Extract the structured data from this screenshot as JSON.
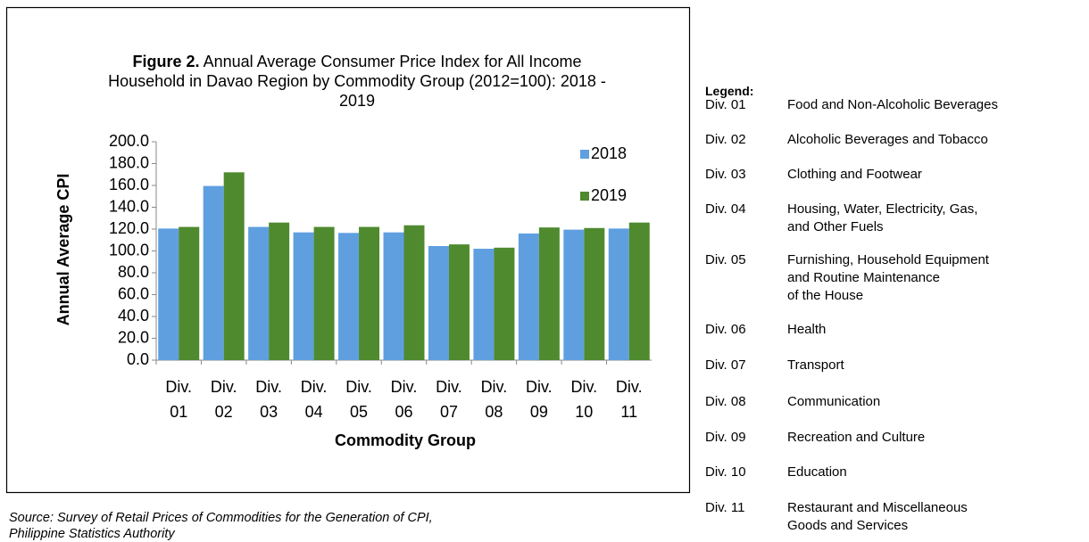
{
  "chart_data": {
    "type": "bar",
    "title_label": "Figure 2.",
    "title": "Annual Average Consumer Price Index for All Income Household in Davao Region by Commodity Group (2012=100): 2018 - 2019",
    "x_label": "Commodity Group",
    "y_label": "Annual Average CPI",
    "categories": [
      "Div. 01",
      "Div. 02",
      "Div. 03",
      "Div. 04",
      "Div. 05",
      "Div. 06",
      "Div. 07",
      "Div. 08",
      "Div. 09",
      "Div. 10",
      "Div. 11"
    ],
    "series": [
      {
        "name": "2018",
        "color": "#5f9fe0",
        "values": [
          120.5,
          159.5,
          122,
          117,
          116.5,
          117,
          104.5,
          102,
          116,
          119.5,
          120.5
        ]
      },
      {
        "name": "2019",
        "color": "#4f8a2f",
        "values": [
          122,
          172,
          126,
          122,
          122,
          123.5,
          106,
          103,
          121.5,
          121,
          126
        ]
      }
    ],
    "ylim": [
      0,
      200
    ],
    "yticks": [
      {
        "value": 0,
        "label": "0.0"
      },
      {
        "value": 20,
        "label": "20.0"
      },
      {
        "value": 40,
        "label": "40.0"
      },
      {
        "value": 60,
        "label": "60.0"
      },
      {
        "value": 80,
        "label": "80.0"
      },
      {
        "value": 100,
        "label": "100.0"
      },
      {
        "value": 120,
        "label": "120.0"
      },
      {
        "value": 140,
        "label": "140.0"
      },
      {
        "value": 160,
        "label": "160.0"
      },
      {
        "value": 180,
        "label": "180.0"
      },
      {
        "value": 200,
        "label": "200.0"
      }
    ],
    "grid": false,
    "legend_position": "upper right"
  },
  "side_legend": {
    "heading": "Legend:",
    "items": [
      {
        "code": "Div. 01",
        "name": "Food and Non-Alcoholic Beverages"
      },
      {
        "code": "Div. 02",
        "name": "Alcoholic Beverages and Tobacco"
      },
      {
        "code": "Div. 03",
        "name": "Clothing and Footwear"
      },
      {
        "code": "Div. 04",
        "name": "Housing, Water, Electricity, Gas,\nand Other Fuels"
      },
      {
        "code": "Div. 05",
        "name": "Furnishing, Household  Equipment\nand  Routine Maintenance\nof the House"
      },
      {
        "code": "Div. 06",
        "name": "Health"
      },
      {
        "code": "Div. 07",
        "name": "Transport"
      },
      {
        "code": "Div. 08",
        "name": "Communication"
      },
      {
        "code": "Div. 09",
        "name": "Recreation and Culture"
      },
      {
        "code": "Div. 10",
        "name": "Education"
      },
      {
        "code": "Div. 11",
        "name": "Restaurant and Miscellaneous\nGoods and Services"
      }
    ]
  },
  "source": "Source: Survey of Retail Prices of Commodities for the Generation of CPI,\nPhilippine Statistics Authority"
}
